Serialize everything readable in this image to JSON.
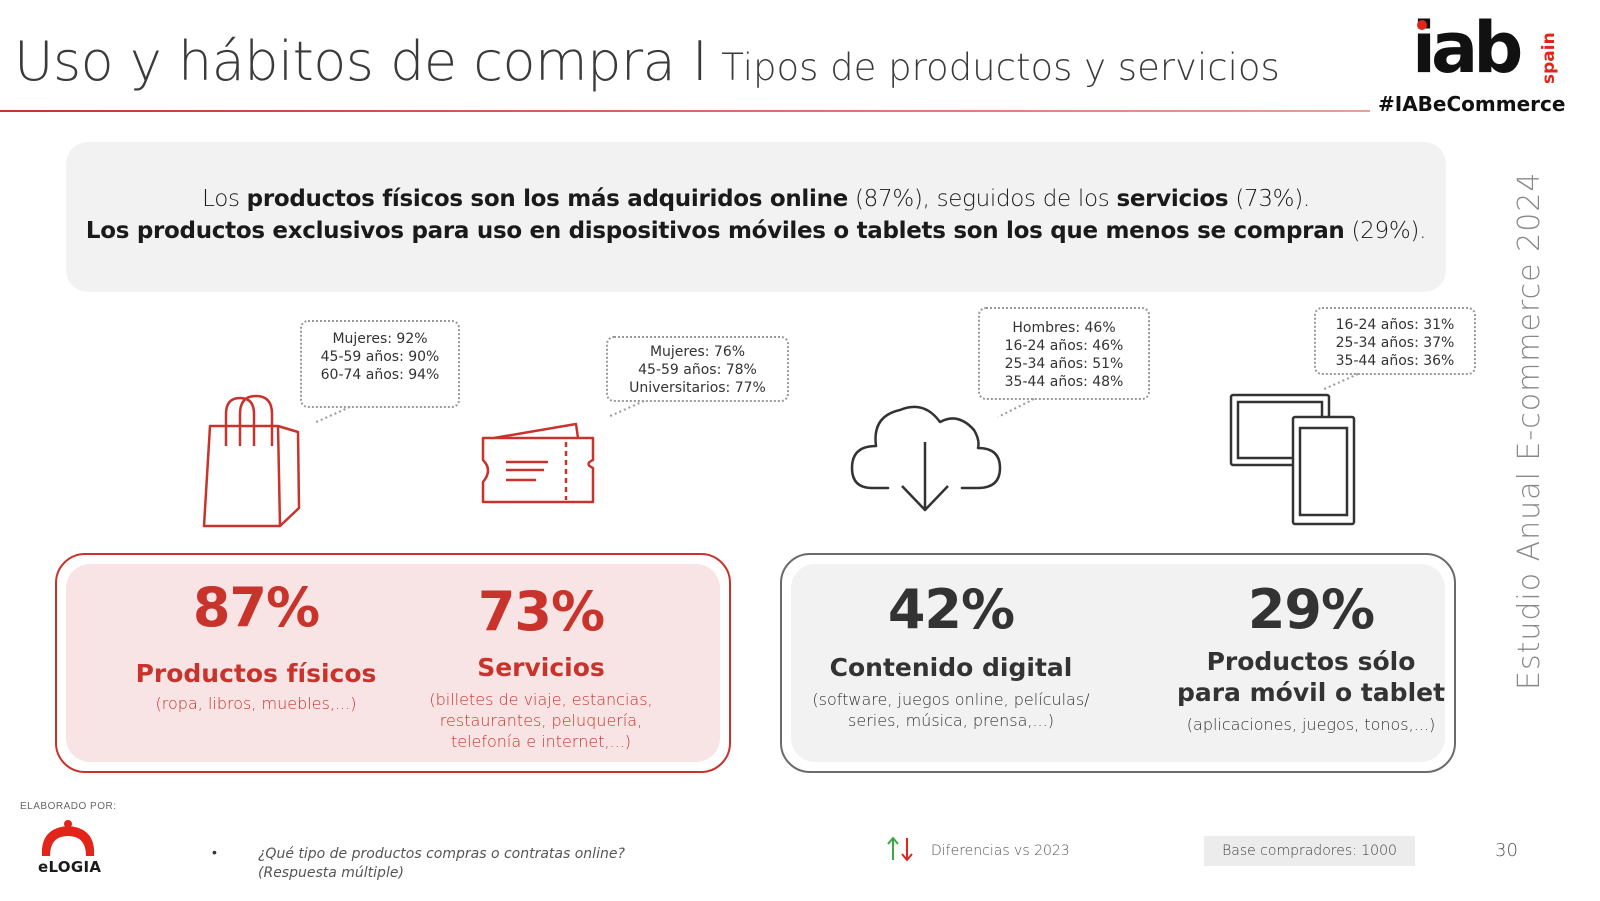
{
  "header": {
    "title": "Uso y hábitos de compra I",
    "subtitle": "Tipos de productos y servicios",
    "brand": "iab",
    "brand_suffix": "spain",
    "hashtag": "#IABeCommerce",
    "accent_color": "#c8332b"
  },
  "summary": {
    "line1": {
      "a": "Los ",
      "b": "productos físicos son los más adquiridos online",
      "c": " (87%), seguidos de los ",
      "d": "servicios",
      "e": " (73%)."
    },
    "line2": {
      "a": "Los productos exclusivos para uso en dispositivos móviles o tablets son los que menos se compran",
      "b": " (29%)."
    }
  },
  "bubbles": [
    {
      "lines": [
        "Mujeres: 92%",
        "45-59 años: 90%",
        "60-74 años: 94%"
      ]
    },
    {
      "lines": [
        "Mujeres: 76%",
        "45-59 años: 78%",
        "Universitarios: 77%"
      ]
    },
    {
      "lines": [
        "Hombres: 46%",
        "16-24 años: 46%",
        "25-34 años: 51%",
        "35-44 años: 48%"
      ]
    },
    {
      "lines": [
        "16-24 años: 31%",
        "25-34 años: 37%",
        "35-44 años: 36%"
      ]
    }
  ],
  "icons": [
    "shopping-bag-icon",
    "ticket-icon",
    "cloud-download-icon",
    "devices-icon"
  ],
  "stats": [
    {
      "value": "87%",
      "label": "Productos físicos",
      "desc": [
        "(ropa, libros, muebles,...)"
      ]
    },
    {
      "value": "73%",
      "label": "Servicios",
      "desc": [
        "(billetes de viaje, estancias,",
        "restaurantes, peluquería,",
        "telefonía e internet,...)"
      ]
    },
    {
      "value": "42%",
      "label": "Contenido digital",
      "desc": [
        "(software, juegos online, películas/",
        "series, música, prensa,...)"
      ]
    },
    {
      "value": "29%",
      "label_lines": [
        "Productos sólo",
        "para móvil o tablet"
      ],
      "desc": [
        "(aplicaciones, juegos, tonos,...)"
      ]
    }
  ],
  "side_label": "Estudio Anual E-commerce  2024",
  "footer": {
    "elaborado": "ELABORADO POR:",
    "agency": "eLOGIA",
    "bullet": "•",
    "question_lines": [
      "¿Qué tipo de productos compras o contratas online?",
      "(Respuesta múltiple)"
    ],
    "diff_label": "Diferencias vs 2023",
    "base": "Base compradores: 1000",
    "page": "30"
  }
}
